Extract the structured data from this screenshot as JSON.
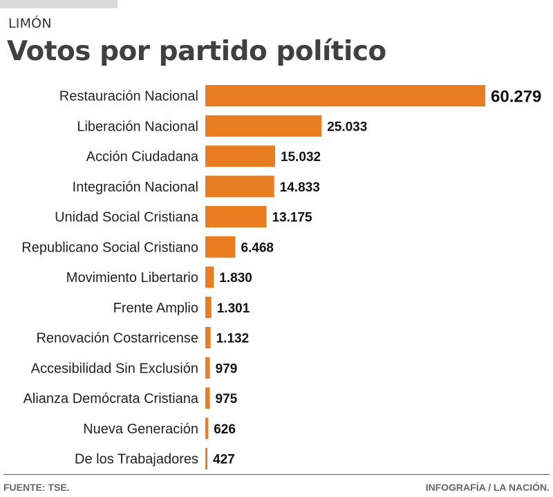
{
  "header": {
    "region": "LIMÓN",
    "title": "Votos por partido político"
  },
  "footer": {
    "source": "FUENTE: TSE.",
    "credit": "INFOGRAFÍA / LA NACIÓN."
  },
  "colors": {
    "bar": "#e87d22",
    "title": "#404040"
  },
  "chart_data": {
    "type": "bar",
    "orientation": "horizontal",
    "title": "Votos por partido político",
    "subtitle": "LIMÓN",
    "xlabel": "",
    "ylabel": "",
    "grid": false,
    "xlim": [
      0,
      60279
    ],
    "categories": [
      "Restauración Nacional",
      "Liberación Nacional",
      "Acción Ciudadana",
      "Integración Nacional",
      "Unidad Social Cristiana",
      "Republicano Social Cristiano",
      "Movimiento Libertario",
      "Frente Amplio",
      "Renovación Costarricense",
      "Accesibilidad Sin Exclusión",
      "Alianza Demócrata Cristiana",
      "Nueva Generación",
      "De los Trabajadores"
    ],
    "values": [
      60279,
      25033,
      15032,
      14833,
      13175,
      6468,
      1830,
      1301,
      1132,
      979,
      975,
      626,
      427
    ],
    "value_labels": [
      "60.279",
      "25.033",
      "15.032",
      "14.833",
      "13.175",
      "6.468",
      "1.830",
      "1.301",
      "1.132",
      "979",
      "975",
      "626",
      "427"
    ]
  }
}
